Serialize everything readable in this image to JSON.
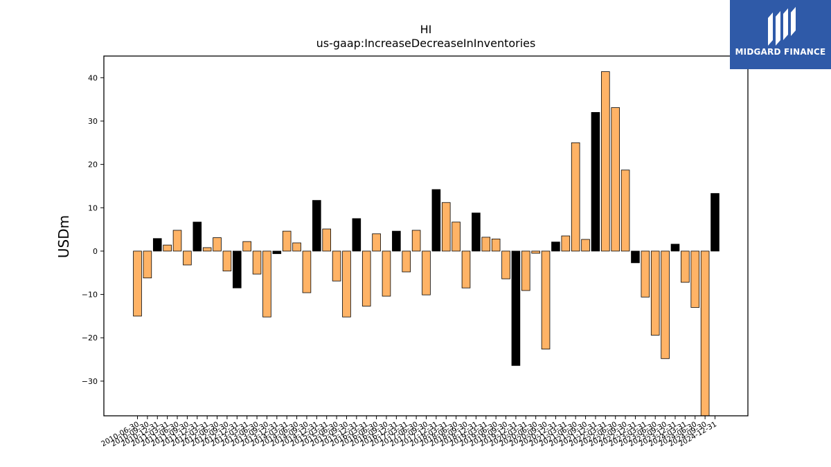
{
  "brand": {
    "name": "MIDGARD FINANCE",
    "background_color": "#2f5aa8"
  },
  "chart_data": {
    "type": "bar",
    "title": "HI",
    "subtitle": "us-gaap:IncreaseDecreaseInInventories",
    "xlabel": "",
    "ylabel": "USDm",
    "ylim": [
      -38,
      45
    ],
    "yticks": [
      -30,
      -20,
      -10,
      0,
      10,
      20,
      30,
      40
    ],
    "grid": false,
    "colors": {
      "annual": "#000000",
      "quarterly": "#ffb366",
      "edge": "#000000"
    },
    "categories": [
      "2010-06-30",
      "2010-09-30",
      "2010-12-31",
      "2011-03-31",
      "2011-06-30",
      "2011-09-30",
      "2011-12-31",
      "2012-03-31",
      "2012-06-30",
      "2012-09-30",
      "2012-12-31",
      "2013-03-31",
      "2013-06-30",
      "2013-09-30",
      "2013-12-31",
      "2014-03-31",
      "2014-06-30",
      "2014-09-30",
      "2014-12-31",
      "2015-03-31",
      "2015-06-30",
      "2015-09-30",
      "2015-12-31",
      "2016-03-31",
      "2016-06-30",
      "2016-09-30",
      "2016-12-31",
      "2017-03-31",
      "2017-06-30",
      "2017-09-30",
      "2017-12-31",
      "2018-03-31",
      "2018-06-30",
      "2018-09-30",
      "2018-12-31",
      "2019-03-31",
      "2019-06-30",
      "2019-09-30",
      "2019-12-31",
      "2020-03-31",
      "2020-06-30",
      "2020-09-30",
      "2020-12-31",
      "2021-03-31",
      "2021-06-30",
      "2021-09-30",
      "2021-12-31",
      "2022-03-31",
      "2022-06-30",
      "2022-09-30",
      "2022-12-31",
      "2023-03-31",
      "2023-06-30",
      "2023-09-30",
      "2023-12-31",
      "2024-03-31",
      "2024-06-30",
      "2024-09-30",
      "2024-12-31"
    ],
    "values": [
      -15.0,
      -6.2,
      2.9,
      1.4,
      4.8,
      -3.2,
      6.7,
      0.8,
      3.1,
      -4.6,
      -8.5,
      2.2,
      -5.3,
      -15.2,
      -0.6,
      4.6,
      1.9,
      -9.6,
      11.7,
      5.1,
      -6.9,
      -15.2,
      7.5,
      -12.7,
      4.0,
      -10.4,
      4.6,
      -4.8,
      4.8,
      -10.1,
      14.2,
      11.2,
      6.7,
      -8.5,
      8.8,
      3.2,
      2.8,
      -6.4,
      -26.4,
      -9.1,
      -0.5,
      -22.6,
      2.1,
      3.5,
      25.0,
      2.7,
      32.0,
      41.4,
      33.1,
      18.7,
      -2.7,
      -10.6,
      -19.4,
      -24.8,
      1.6,
      -7.2,
      -13.0,
      -38.0,
      13.3
    ],
    "annual_flags": [
      false,
      false,
      true,
      false,
      false,
      false,
      true,
      false,
      false,
      false,
      true,
      false,
      false,
      false,
      true,
      false,
      false,
      false,
      true,
      false,
      false,
      false,
      true,
      false,
      false,
      false,
      true,
      false,
      false,
      false,
      true,
      false,
      false,
      false,
      true,
      false,
      false,
      false,
      true,
      false,
      false,
      false,
      true,
      false,
      false,
      false,
      true,
      false,
      false,
      false,
      true,
      false,
      false,
      false,
      true,
      false,
      false,
      false,
      true
    ]
  }
}
